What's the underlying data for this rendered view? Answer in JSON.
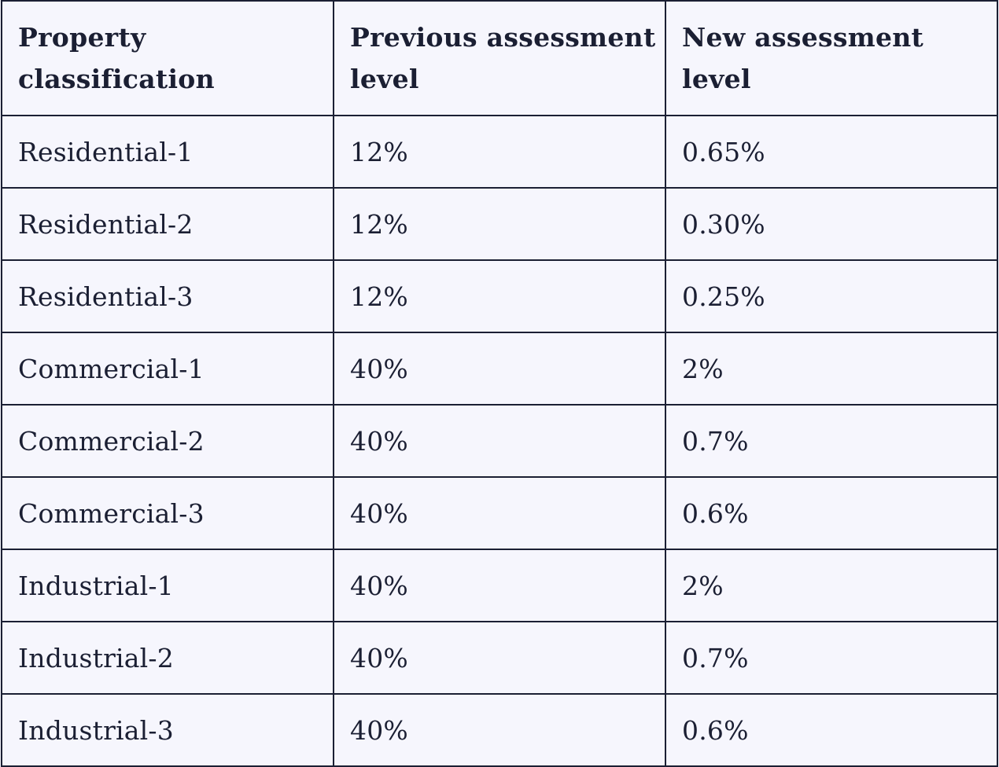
{
  "table": {
    "headers": [
      "Property classification",
      "Previous assessment level",
      "New assessment level"
    ],
    "rows": [
      [
        "Residential-1",
        "12%",
        "0.65%"
      ],
      [
        "Residential-2",
        "12%",
        "0.30%"
      ],
      [
        "Residential-3",
        "12%",
        "0.25%"
      ],
      [
        "Commercial-1",
        "40%",
        "2%"
      ],
      [
        "Commercial-2",
        "40%",
        "0.7%"
      ],
      [
        "Commercial-3",
        "40%",
        "0.6%"
      ],
      [
        "Industrial-1",
        "40%",
        "2%"
      ],
      [
        "Industrial-2",
        "40%",
        "0.7%"
      ],
      [
        "Industrial-3",
        "40%",
        "0.6%"
      ]
    ]
  }
}
